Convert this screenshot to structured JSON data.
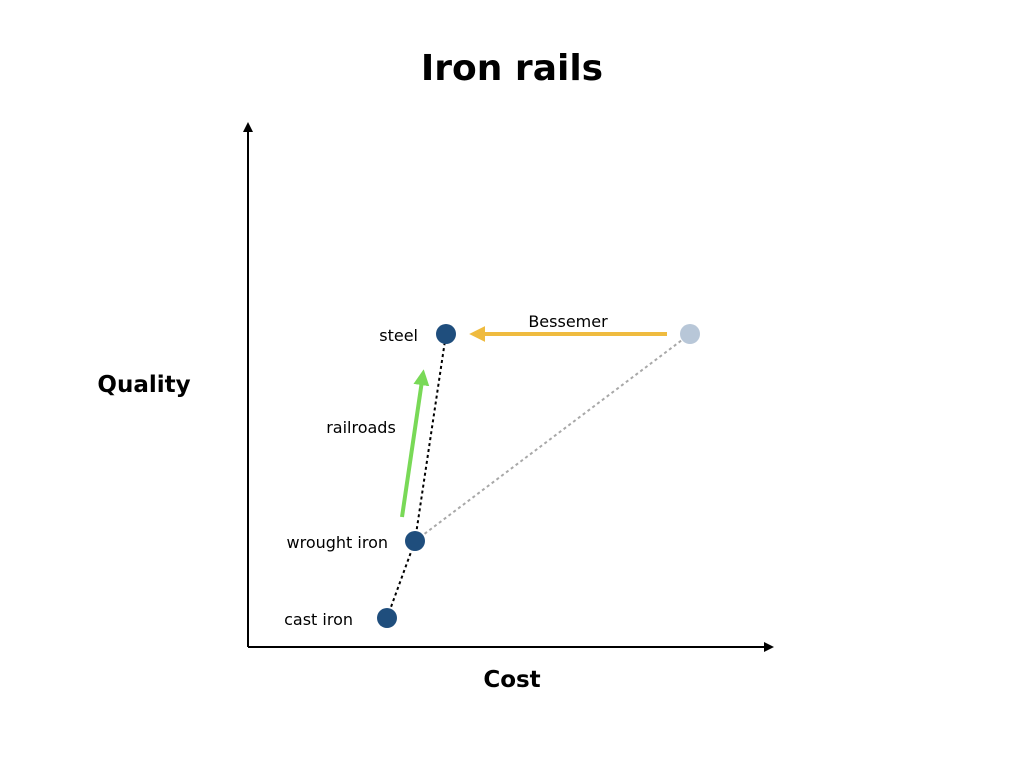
{
  "title": "Iron rails",
  "axes": {
    "x_label": "Cost",
    "y_label": "Quality"
  },
  "points": {
    "cast_iron": {
      "label": "cast iron",
      "color": "#1f4e7d"
    },
    "wrought_iron": {
      "label": "wrought iron",
      "color": "#1f4e7d"
    },
    "steel": {
      "label": "steel",
      "color": "#1f4e7d"
    },
    "steel_pre_bessemer": {
      "label": "",
      "color": "#b8c7d8"
    }
  },
  "arrows": {
    "railroads": {
      "label": "railroads",
      "color": "#79d957"
    },
    "bessemer": {
      "label": "Bessemer",
      "color": "#efbb3f"
    }
  },
  "colors": {
    "axis": "#000000",
    "black_dashed": "#000000",
    "grey_dashed": "#a8a8a8"
  }
}
